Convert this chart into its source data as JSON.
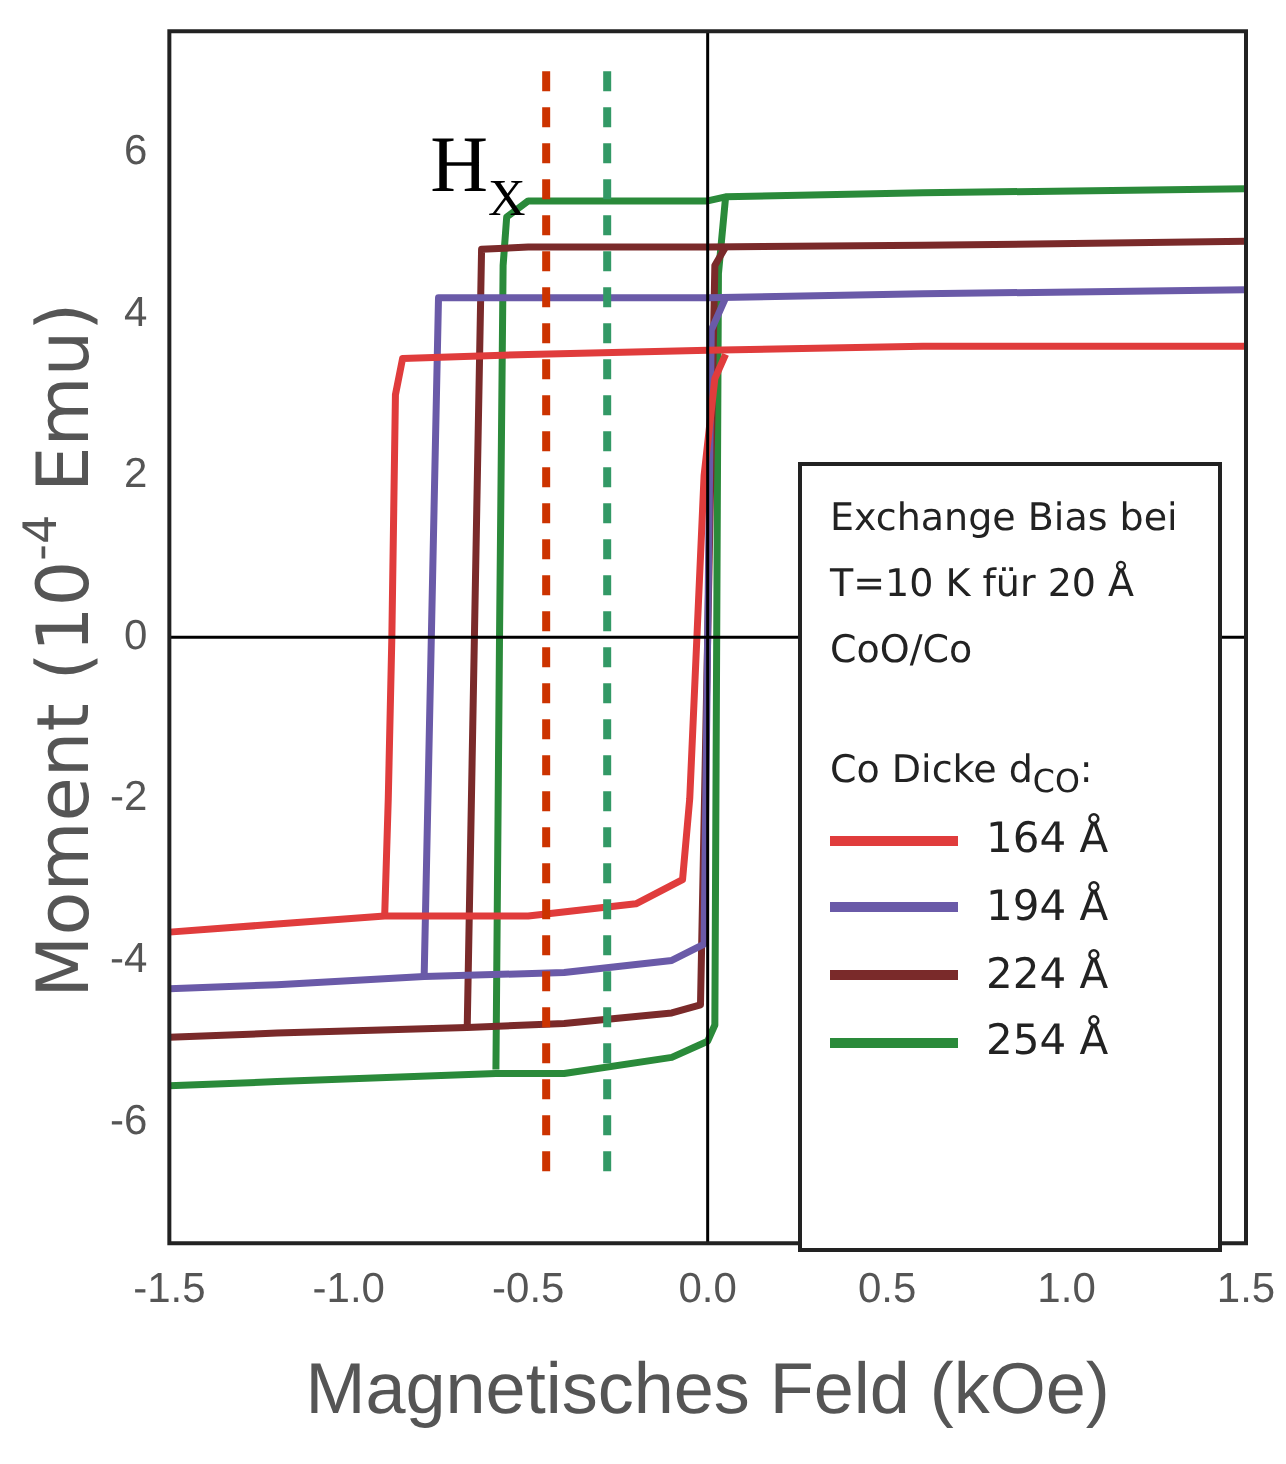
{
  "chart_data": {
    "type": "line",
    "xlabel": "Magnetisches Feld (kOe)",
    "ylabel": "Moment (10$^{-4}$ Emu)",
    "legend_title": "Co Dicke d$_{CO}$:",
    "annotations": [
      "Exchange Bias bei T=10 K für 20 Å CoO/Co"
    ],
    "legend": "bottom right",
    "grid": false,
    "marker": "none",
    "line_style": "solid",
    "xlim": [
      -1.5,
      1.5
    ],
    "xticks": [
      {
        "value": -1.5,
        "label": "-1.5"
      },
      {
        "value": -1,
        "label": "-1.0"
      },
      {
        "value": -0.5,
        "label": "-0.5"
      },
      {
        "value": 0,
        "label": "0.0"
      },
      {
        "value": 0.5,
        "label": "0.5"
      },
      {
        "value": 1,
        "label": "1.0"
      },
      {
        "value": 1.5,
        "label": "1.5"
      }
    ],
    "ylim": [
      -7.5,
      7.5
    ],
    "yticks": [
      -6,
      -4,
      -2,
      0,
      2,
      4,
      6
    ],
    "ref_lines": [
      {
        "axis": "x",
        "value": -0.45,
        "label": "H$_{X}$",
        "color": "#cc3300",
        "line_style": "dashed"
      },
      {
        "axis": "x",
        "value": -0.28,
        "color": "#339966",
        "line_style": "dashed"
      },
      {
        "axis": "x",
        "value": 0,
        "color": "#000000",
        "line_style": "solid"
      },
      {
        "axis": "y",
        "value": 0,
        "color": "#000000",
        "line_style": "solid"
      }
    ],
    "series": [
      {
        "name": "164 Å",
        "color": "#e03c3c",
        "x": [
          -0.9,
          -0.89,
          -0.88,
          -0.87,
          -0.85,
          -0.5,
          0,
          0.6,
          1.5
        ],
        "values": [
          -3.45,
          -2.0,
          0,
          3.0,
          3.45,
          3.5,
          3.55,
          3.6,
          3.6
        ]
      },
      {
        "color": "#e03c3c",
        "x": [
          -1.5,
          -1.2,
          -0.9,
          -0.5,
          -0.2,
          -0.07,
          -0.05,
          -0.03,
          -0.01,
          0.02,
          0.05
        ],
        "values": [
          -3.65,
          -3.55,
          -3.45,
          -3.45,
          -3.3,
          -3.0,
          -2.0,
          0,
          2.0,
          3.2,
          3.5
        ]
      },
      {
        "name": "194 Å",
        "color": "#6a5aa8",
        "x": [
          -0.79,
          -0.77,
          -0.75,
          -0.5,
          0,
          0.6,
          1.5
        ],
        "values": [
          -4.2,
          0,
          4.2,
          4.2,
          4.2,
          4.25,
          4.3
        ]
      },
      {
        "color": "#6a5aa8",
        "x": [
          -1.5,
          -1.2,
          -0.79,
          -0.4,
          -0.1,
          -0.01,
          0,
          0.01,
          0.05
        ],
        "values": [
          -4.35,
          -4.3,
          -4.2,
          -4.15,
          -4.0,
          -3.8,
          0,
          3.8,
          4.2
        ]
      },
      {
        "name": "224 Å",
        "color": "#7a2a2a",
        "x": [
          -0.67,
          -0.65,
          -0.63,
          -0.5,
          0,
          0.6,
          1.5
        ],
        "values": [
          -4.83,
          0,
          4.8,
          4.83,
          4.83,
          4.85,
          4.9
        ]
      },
      {
        "color": "#7a2a2a",
        "x": [
          -1.5,
          -1.2,
          -0.67,
          -0.4,
          -0.1,
          -0.02,
          0,
          0.02,
          0.05
        ],
        "values": [
          -4.95,
          -4.9,
          -4.83,
          -4.78,
          -4.65,
          -4.55,
          0,
          4.6,
          4.83
        ]
      },
      {
        "name": "254 Å",
        "color": "#2a8a3a",
        "x": [
          -0.59,
          -0.58,
          -0.57,
          -0.56,
          -0.5,
          0,
          0.05,
          0.6,
          1.5
        ],
        "values": [
          -5.35,
          0,
          4.6,
          5.2,
          5.4,
          5.4,
          5.45,
          5.5,
          5.55
        ]
      },
      {
        "color": "#2a8a3a",
        "x": [
          -1.5,
          -1.2,
          -0.59,
          -0.4,
          -0.1,
          0,
          0.02,
          0.03,
          0.05
        ],
        "values": [
          -5.55,
          -5.5,
          -5.4,
          -5.4,
          -5.2,
          -5.0,
          -4.8,
          4.5,
          5.45
        ]
      }
    ]
  }
}
